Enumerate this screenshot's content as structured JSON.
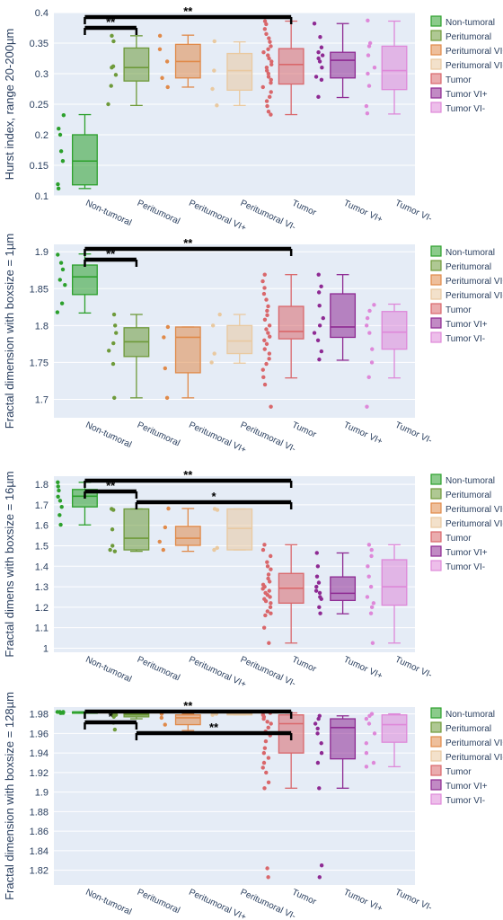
{
  "categories": [
    "Non-tumoral",
    "Peritumoral",
    "Peritumoral VI+",
    "Peritumoral VI-",
    "Tumor",
    "Tumor VI+",
    "Tumor VI-"
  ],
  "colors": {
    "Non-tumoral": "#2ca02c",
    "Peritumoral": "#6e9a3a",
    "Peritumoral VI+": "#e08a4a",
    "Peritumoral VI-": "#e9c9a0",
    "Tumor": "#d9676b",
    "Tumor VI+": "#8e2a93",
    "Tumor VI-": "#de88d9",
    "plot_background": "#e5ecf6",
    "significance_bar": "#000000"
  },
  "chart_data": [
    {
      "type": "box",
      "ylabel": "Hurst index, range 20-200µm",
      "ylim": [
        0.1,
        0.4
      ],
      "yticks": [
        0.1,
        0.15,
        0.2,
        0.25,
        0.3,
        0.35,
        0.4
      ],
      "ytick_labels": [
        "0.1",
        "0.15",
        "0.2",
        "0.25",
        "0.3",
        "0.35",
        "0.4"
      ],
      "grid": true,
      "legend": "right",
      "boxes": [
        {
          "name": "Non-tumoral",
          "min": 0.112,
          "q1": 0.118,
          "median": 0.157,
          "q3": 0.2,
          "max": 0.233,
          "points": [
            0.232,
            0.21,
            0.2,
            0.173,
            0.157,
            0.119,
            0.112
          ]
        },
        {
          "name": "Peritumoral",
          "min": 0.248,
          "q1": 0.288,
          "median": 0.31,
          "q3": 0.342,
          "max": 0.362,
          "points": [
            0.362,
            0.353,
            0.312,
            0.31,
            0.298,
            0.28,
            0.25
          ]
        },
        {
          "name": "Peritumoral VI+",
          "min": 0.278,
          "q1": 0.293,
          "median": 0.32,
          "q3": 0.348,
          "max": 0.363,
          "points": [
            0.362,
            0.34,
            0.32,
            0.293,
            0.278
          ]
        },
        {
          "name": "Peritumoral VI-",
          "min": 0.248,
          "q1": 0.273,
          "median": 0.305,
          "q3": 0.333,
          "max": 0.352,
          "points": [
            0.353,
            0.305,
            0.275,
            0.248
          ]
        },
        {
          "name": "Tumor",
          "min": 0.233,
          "q1": 0.283,
          "median": 0.315,
          "q3": 0.341,
          "max": 0.386,
          "points": [
            0.386,
            0.381,
            0.373,
            0.365,
            0.358,
            0.352,
            0.345,
            0.34,
            0.335,
            0.33,
            0.325,
            0.32,
            0.315,
            0.31,
            0.305,
            0.3,
            0.295,
            0.29,
            0.285,
            0.278,
            0.27,
            0.262,
            0.255,
            0.247,
            0.238,
            0.233
          ]
        },
        {
          "name": "Tumor VI+",
          "min": 0.261,
          "q1": 0.293,
          "median": 0.322,
          "q3": 0.335,
          "max": 0.382,
          "points": [
            0.382,
            0.36,
            0.343,
            0.335,
            0.33,
            0.325,
            0.32,
            0.31,
            0.295,
            0.29,
            0.262
          ]
        },
        {
          "name": "Tumor VI-",
          "min": 0.234,
          "q1": 0.274,
          "median": 0.305,
          "q3": 0.345,
          "max": 0.386,
          "points": [
            0.387,
            0.35,
            0.345,
            0.33,
            0.31,
            0.3,
            0.28,
            0.247,
            0.235
          ]
        }
      ],
      "significance": [
        {
          "from": "Non-tumoral",
          "to": "Tumor",
          "label": "**",
          "level": 2
        },
        {
          "from": "Non-tumoral",
          "to": "Peritumoral",
          "label": "**",
          "level": 1
        }
      ]
    },
    {
      "type": "box",
      "ylabel": "Fractal dimension with boxsize = 1µm",
      "ylim": [
        1.675,
        1.91
      ],
      "yticks": [
        1.7,
        1.75,
        1.8,
        1.85,
        1.9
      ],
      "ytick_labels": [
        "1.7",
        "1.75",
        "1.8",
        "1.85",
        "1.9"
      ],
      "grid": true,
      "legend": "right",
      "boxes": [
        {
          "name": "Non-tumoral",
          "min": 1.817,
          "q1": 1.842,
          "median": 1.866,
          "q3": 1.882,
          "max": 1.897,
          "points": [
            1.896,
            1.885,
            1.876,
            1.862,
            1.855,
            1.83,
            1.818
          ]
        },
        {
          "name": "Peritumoral",
          "min": 1.702,
          "q1": 1.758,
          "median": 1.778,
          "q3": 1.797,
          "max": 1.815,
          "points": [
            1.815,
            1.8,
            1.79,
            1.776,
            1.766,
            1.748,
            1.702
          ]
        },
        {
          "name": "Peritumoral VI+",
          "min": 1.702,
          "q1": 1.736,
          "median": 1.784,
          "q3": 1.798,
          "max": 1.798,
          "points": [
            1.798,
            1.784,
            1.742,
            1.702
          ]
        },
        {
          "name": "Peritumoral VI-",
          "min": 1.749,
          "q1": 1.762,
          "median": 1.779,
          "q3": 1.8,
          "max": 1.815,
          "points": [
            1.815,
            1.8,
            1.762,
            1.75
          ]
        },
        {
          "name": "Tumor",
          "min": 1.729,
          "q1": 1.782,
          "median": 1.792,
          "q3": 1.826,
          "max": 1.869,
          "points": [
            1.869,
            1.86,
            1.851,
            1.843,
            1.835,
            1.826,
            1.82,
            1.814,
            1.808,
            1.8,
            1.795,
            1.79,
            1.785,
            1.78,
            1.775,
            1.768,
            1.762,
            1.755,
            1.748,
            1.74,
            1.73,
            1.72,
            1.69
          ]
        },
        {
          "name": "Tumor VI+",
          "min": 1.753,
          "q1": 1.784,
          "median": 1.798,
          "q3": 1.843,
          "max": 1.869,
          "points": [
            1.869,
            1.853,
            1.845,
            1.827,
            1.81,
            1.8,
            1.79,
            1.78,
            1.765,
            1.754
          ]
        },
        {
          "name": "Tumor VI-",
          "min": 1.729,
          "q1": 1.768,
          "median": 1.791,
          "q3": 1.819,
          "max": 1.829,
          "points": [
            1.828,
            1.82,
            1.81,
            1.8,
            1.79,
            1.768,
            1.75,
            1.73,
            1.69
          ]
        }
      ],
      "significance": [
        {
          "from": "Non-tumoral",
          "to": "Tumor",
          "label": "**",
          "level": 2
        },
        {
          "from": "Non-tumoral",
          "to": "Peritumoral",
          "label": "**",
          "level": 1
        }
      ]
    },
    {
      "type": "box",
      "ylabel": "Fractal dimens with boxsize = 16µm",
      "ylim": [
        0.98,
        1.84
      ],
      "yticks": [
        1,
        1.1,
        1.2,
        1.3,
        1.4,
        1.5,
        1.6,
        1.7,
        1.8
      ],
      "ytick_labels": [
        "1",
        "1.1",
        "1.2",
        "1.3",
        "1.4",
        "1.5",
        "1.6",
        "1.7",
        "1.8"
      ],
      "grid": true,
      "legend": "right",
      "boxes": [
        {
          "name": "Non-tumoral",
          "min": 1.602,
          "q1": 1.69,
          "median": 1.742,
          "q3": 1.775,
          "max": 1.81,
          "points": [
            1.81,
            1.79,
            1.77,
            1.74,
            1.72,
            1.69,
            1.65,
            1.603
          ]
        },
        {
          "name": "Peritumoral",
          "min": 1.473,
          "q1": 1.48,
          "median": 1.537,
          "q3": 1.68,
          "max": 1.68,
          "points": [
            1.68,
            1.675,
            1.58,
            1.5,
            1.48,
            1.473
          ]
        },
        {
          "name": "Peritumoral VI+",
          "min": 1.473,
          "q1": 1.502,
          "median": 1.537,
          "q3": 1.595,
          "max": 1.682,
          "points": [
            1.682,
            1.59,
            1.52,
            1.48
          ]
        },
        {
          "name": "Peritumoral VI-",
          "min": 1.48,
          "q1": 1.48,
          "median": 1.585,
          "q3": 1.68,
          "max": 1.68,
          "points": [
            1.68,
            1.675,
            1.49,
            1.48
          ]
        },
        {
          "name": "Tumor",
          "min": 1.025,
          "q1": 1.22,
          "median": 1.293,
          "q3": 1.365,
          "max": 1.505,
          "points": [
            1.505,
            1.48,
            1.45,
            1.42,
            1.4,
            1.385,
            1.36,
            1.34,
            1.325,
            1.31,
            1.3,
            1.29,
            1.28,
            1.27,
            1.26,
            1.25,
            1.24,
            1.23,
            1.22,
            1.2,
            1.18,
            1.17,
            1.16,
            1.1,
            1.025
          ]
        },
        {
          "name": "Tumor VI+",
          "min": 1.168,
          "q1": 1.233,
          "median": 1.268,
          "q3": 1.348,
          "max": 1.465,
          "points": [
            1.465,
            1.4,
            1.35,
            1.32,
            1.3,
            1.28,
            1.27,
            1.25,
            1.24,
            1.2,
            1.17
          ]
        },
        {
          "name": "Tumor VI-",
          "min": 1.025,
          "q1": 1.21,
          "median": 1.3,
          "q3": 1.432,
          "max": 1.505,
          "points": [
            1.505,
            1.48,
            1.45,
            1.4,
            1.35,
            1.3,
            1.25,
            1.22,
            1.2,
            1.17,
            1.025
          ]
        }
      ],
      "significance": [
        {
          "from": "Non-tumoral",
          "to": "Tumor",
          "label": "**",
          "level": 3
        },
        {
          "from": "Non-tumoral",
          "to": "Peritumoral",
          "label": "**",
          "level": 2
        },
        {
          "from": "Peritumoral",
          "to": "Tumor",
          "label": "*",
          "level": 1
        }
      ]
    },
    {
      "type": "box",
      "ylabel": "Fractal dimension with boxsize = 128µm",
      "ylim": [
        1.805,
        1.987
      ],
      "yticks": [
        1.82,
        1.84,
        1.86,
        1.88,
        1.9,
        1.92,
        1.94,
        1.96,
        1.98
      ],
      "ytick_labels": [
        "1.82",
        "1.84",
        "1.86",
        "1.88",
        "1.9",
        "1.92",
        "1.94",
        "1.96",
        "1.98"
      ],
      "grid": true,
      "legend": "right",
      "boxes": [
        {
          "name": "Non-tumoral",
          "min": 1.981,
          "q1": 1.981,
          "median": 1.982,
          "q3": 1.982,
          "max": 1.982,
          "points": [
            1.982,
            1.982,
            1.982,
            1.981,
            1.981,
            1.981
          ]
        },
        {
          "name": "Peritumoral",
          "min": 1.975,
          "q1": 1.977,
          "median": 1.979,
          "q3": 1.98,
          "max": 1.981,
          "points": [
            1.98,
            1.979,
            1.977,
            1.971,
            1.964
          ]
        },
        {
          "name": "Peritumoral VI+",
          "min": 1.963,
          "q1": 1.969,
          "median": 1.976,
          "q3": 1.979,
          "max": 1.98,
          "points": [
            1.98,
            1.976,
            1.969
          ]
        },
        {
          "name": "Peritumoral VI-",
          "min": 1.979,
          "q1": 1.979,
          "median": 1.98,
          "q3": 1.981,
          "max": 1.981,
          "points": [
            1.981,
            1.98,
            1.979
          ]
        },
        {
          "name": "Tumor",
          "min": 1.904,
          "q1": 1.94,
          "median": 1.97,
          "q3": 1.979,
          "max": 1.981,
          "points": [
            1.981,
            1.979,
            1.977,
            1.975,
            1.972,
            1.97,
            1.966,
            1.962,
            1.958,
            1.952,
            1.945,
            1.94,
            1.935,
            1.93,
            1.925,
            1.92,
            1.91,
            1.904,
            1.822,
            1.813
          ]
        },
        {
          "name": "Tumor VI+",
          "min": 1.904,
          "q1": 1.934,
          "median": 1.966,
          "q3": 1.975,
          "max": 1.978,
          "points": [
            1.978,
            1.975,
            1.97,
            1.965,
            1.96,
            1.95,
            1.94,
            1.93,
            1.904,
            1.825,
            1.813
          ]
        },
        {
          "name": "Tumor VI-",
          "min": 1.926,
          "q1": 1.951,
          "median": 1.969,
          "q3": 1.979,
          "max": 1.98,
          "points": [
            1.98,
            1.978,
            1.975,
            1.97,
            1.96,
            1.95,
            1.94,
            1.93,
            1.926
          ]
        }
      ],
      "significance": [
        {
          "from": "Non-tumoral",
          "to": "Tumor",
          "label": "**",
          "level": 3
        },
        {
          "from": "Non-tumoral",
          "to": "Peritumoral",
          "label": "*",
          "level": 2
        },
        {
          "from": "Peritumoral",
          "to": "Tumor",
          "label": "**",
          "level": 1
        }
      ]
    }
  ]
}
